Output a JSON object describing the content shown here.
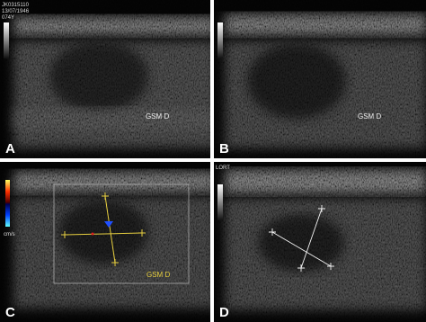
{
  "panels": [
    {
      "label": "A",
      "header": [
        "JK0315110",
        "13/07/1946",
        "074Y"
      ],
      "annotation": "GSM D"
    },
    {
      "label": "B",
      "annotation": "GSM D"
    },
    {
      "label": "C",
      "annotation": "GSM D",
      "scale": "cm/s"
    },
    {
      "label": "D",
      "header": [
        "LORT"
      ]
    }
  ]
}
